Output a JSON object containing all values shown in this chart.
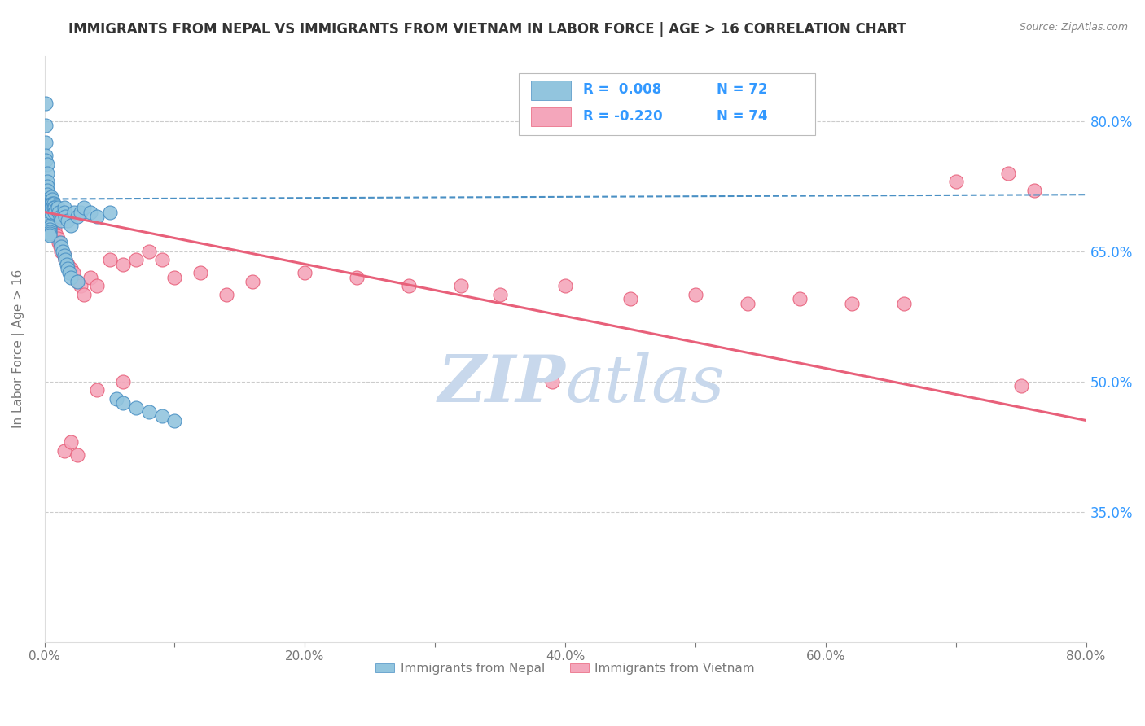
{
  "title": "IMMIGRANTS FROM NEPAL VS IMMIGRANTS FROM VIETNAM IN LABOR FORCE | AGE > 16 CORRELATION CHART",
  "source": "Source: ZipAtlas.com",
  "ylabel": "In Labor Force | Age > 16",
  "xlim": [
    0.0,
    0.8
  ],
  "ylim": [
    0.2,
    0.875
  ],
  "xticks": [
    0.0,
    0.1,
    0.2,
    0.3,
    0.4,
    0.5,
    0.6,
    0.7,
    0.8
  ],
  "xticklabels": [
    "0.0%",
    "",
    "20.0%",
    "",
    "40.0%",
    "",
    "60.0%",
    "",
    "80.0%"
  ],
  "yticks": [
    0.35,
    0.5,
    0.65,
    0.8
  ],
  "yticklabels": [
    "35.0%",
    "50.0%",
    "65.0%",
    "80.0%"
  ],
  "nepal_R": 0.008,
  "nepal_N": 72,
  "vietnam_R": -0.22,
  "vietnam_N": 74,
  "nepal_color": "#92C5DE",
  "vietnam_color": "#F4A6BB",
  "nepal_edge_color": "#4A90C4",
  "vietnam_edge_color": "#E8607A",
  "nepal_line_color": "#4A90C4",
  "vietnam_line_color": "#E8607A",
  "nepal_x": [
    0.001,
    0.001,
    0.001,
    0.001,
    0.001,
    0.002,
    0.002,
    0.002,
    0.002,
    0.002,
    0.002,
    0.002,
    0.003,
    0.003,
    0.003,
    0.003,
    0.003,
    0.003,
    0.003,
    0.003,
    0.003,
    0.004,
    0.004,
    0.004,
    0.004,
    0.004,
    0.004,
    0.005,
    0.005,
    0.005,
    0.005,
    0.005,
    0.006,
    0.006,
    0.006,
    0.007,
    0.007,
    0.008,
    0.008,
    0.009,
    0.01,
    0.011,
    0.012,
    0.013,
    0.015,
    0.015,
    0.016,
    0.018,
    0.02,
    0.023,
    0.025,
    0.028,
    0.03,
    0.035,
    0.04,
    0.05,
    0.055,
    0.06,
    0.07,
    0.08,
    0.09,
    0.1,
    0.012,
    0.013,
    0.014,
    0.015,
    0.016,
    0.017,
    0.018,
    0.019,
    0.02,
    0.025
  ],
  "nepal_y": [
    0.82,
    0.795,
    0.775,
    0.76,
    0.755,
    0.75,
    0.74,
    0.73,
    0.725,
    0.72,
    0.715,
    0.71,
    0.705,
    0.7,
    0.698,
    0.695,
    0.692,
    0.69,
    0.688,
    0.685,
    0.682,
    0.68,
    0.678,
    0.675,
    0.672,
    0.67,
    0.668,
    0.712,
    0.708,
    0.705,
    0.7,
    0.695,
    0.71,
    0.705,
    0.7,
    0.705,
    0.7,
    0.7,
    0.695,
    0.698,
    0.7,
    0.695,
    0.69,
    0.685,
    0.7,
    0.695,
    0.69,
    0.685,
    0.68,
    0.695,
    0.69,
    0.695,
    0.7,
    0.695,
    0.69,
    0.695,
    0.48,
    0.475,
    0.47,
    0.465,
    0.46,
    0.455,
    0.66,
    0.655,
    0.65,
    0.645,
    0.64,
    0.635,
    0.63,
    0.625,
    0.62,
    0.615
  ],
  "vietnam_x": [
    0.001,
    0.001,
    0.001,
    0.002,
    0.002,
    0.002,
    0.002,
    0.002,
    0.003,
    0.003,
    0.003,
    0.003,
    0.003,
    0.004,
    0.004,
    0.004,
    0.004,
    0.005,
    0.005,
    0.005,
    0.005,
    0.006,
    0.006,
    0.006,
    0.007,
    0.007,
    0.008,
    0.008,
    0.009,
    0.01,
    0.011,
    0.012,
    0.013,
    0.015,
    0.016,
    0.018,
    0.02,
    0.022,
    0.025,
    0.028,
    0.03,
    0.035,
    0.04,
    0.05,
    0.06,
    0.07,
    0.08,
    0.09,
    0.1,
    0.12,
    0.14,
    0.16,
    0.2,
    0.24,
    0.28,
    0.32,
    0.35,
    0.4,
    0.45,
    0.5,
    0.54,
    0.58,
    0.62,
    0.66,
    0.7,
    0.74,
    0.76,
    0.015,
    0.02,
    0.025,
    0.04,
    0.06,
    0.75,
    0.39
  ],
  "vietnam_y": [
    0.72,
    0.71,
    0.7,
    0.715,
    0.705,
    0.7,
    0.695,
    0.69,
    0.7,
    0.695,
    0.69,
    0.685,
    0.68,
    0.695,
    0.69,
    0.685,
    0.68,
    0.69,
    0.685,
    0.68,
    0.675,
    0.685,
    0.68,
    0.675,
    0.68,
    0.675,
    0.675,
    0.67,
    0.668,
    0.665,
    0.66,
    0.655,
    0.65,
    0.645,
    0.64,
    0.635,
    0.63,
    0.625,
    0.615,
    0.61,
    0.6,
    0.62,
    0.61,
    0.64,
    0.635,
    0.64,
    0.65,
    0.64,
    0.62,
    0.625,
    0.6,
    0.615,
    0.625,
    0.62,
    0.61,
    0.61,
    0.6,
    0.61,
    0.595,
    0.6,
    0.59,
    0.595,
    0.59,
    0.59,
    0.73,
    0.74,
    0.72,
    0.42,
    0.43,
    0.415,
    0.49,
    0.5,
    0.495,
    0.5
  ],
  "nepal_trend_x": [
    0.0,
    0.8
  ],
  "nepal_trend_y": [
    0.71,
    0.715
  ],
  "vietnam_trend_x": [
    0.0,
    0.8
  ],
  "vietnam_trend_y": [
    0.695,
    0.455
  ],
  "background_color": "#FFFFFF",
  "grid_color": "#CCCCCC",
  "watermark_top": "ZIP",
  "watermark_bottom": "atlas",
  "watermark_color": "#C8D8EC",
  "title_color": "#333333",
  "source_color": "#888888",
  "axis_color": "#777777",
  "ytick_color": "#3399FF",
  "legend_text_color": "#3399FF",
  "legend_label_nepal": "Immigrants from Nepal",
  "legend_label_vietnam": "Immigrants from Vietnam"
}
